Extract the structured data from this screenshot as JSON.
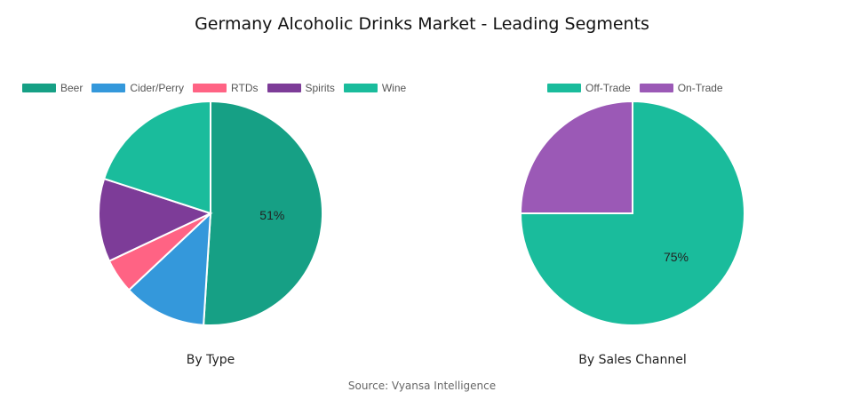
{
  "title": "Germany Alcoholic Drinks Market - Leading Segments",
  "source": "Source: Vyansa Intelligence",
  "chart_data": [
    {
      "type": "pie",
      "caption": "By Type",
      "legend_position": "top-left",
      "slices": [
        {
          "label": "Beer",
          "value": 51,
          "color": "#16a085",
          "show_label": "51%"
        },
        {
          "label": "Cider/Perry",
          "value": 12,
          "color": "#3498db",
          "show_label": ""
        },
        {
          "label": "RTDs",
          "value": 5,
          "color": "#ff6384",
          "show_label": ""
        },
        {
          "label": "Spirits",
          "value": 12,
          "color": "#7d3c98",
          "show_label": ""
        },
        {
          "label": "Wine",
          "value": 20,
          "color": "#1abc9c",
          "show_label": ""
        }
      ]
    },
    {
      "type": "pie",
      "caption": "By Sales Channel",
      "legend_position": "top-center",
      "slices": [
        {
          "label": "Off-Trade",
          "value": 75,
          "color": "#1abc9c",
          "show_label": "75%"
        },
        {
          "label": "On-Trade",
          "value": 25,
          "color": "#9b59b6",
          "show_label": ""
        }
      ]
    }
  ]
}
